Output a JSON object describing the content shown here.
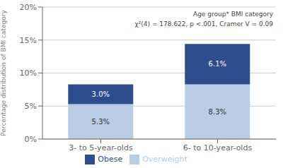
{
  "chart_data": {
    "type": "bar",
    "stacked": true,
    "categories": [
      "3- to 5-year-olds",
      "6- to 10-year-olds"
    ],
    "series": [
      {
        "name": "Overweight",
        "color": "#b8cce4",
        "values": [
          5.3,
          8.3
        ],
        "value_labels": [
          "5.3%",
          "8.3%"
        ]
      },
      {
        "name": "Obese",
        "color": "#2e4d8e",
        "values": [
          3.0,
          6.1
        ],
        "value_labels": [
          "3.0%",
          "6.1%"
        ]
      }
    ],
    "ylabel": "Percentage distribution of BMI category",
    "ylim": [
      0,
      20
    ],
    "yticks": [
      {
        "value": 0,
        "label": "0%"
      },
      {
        "value": 5,
        "label": "5%"
      },
      {
        "value": 10,
        "label": "10%"
      },
      {
        "value": 15,
        "label": "15%"
      },
      {
        "value": 20,
        "label": "20%"
      }
    ],
    "annotations": [
      "Age group* BMI category",
      "χ²(4) = 178.622, p <.001, Cramer V = 0.09"
    ],
    "grid": true,
    "legend": "bottom",
    "data_labels": true
  }
}
